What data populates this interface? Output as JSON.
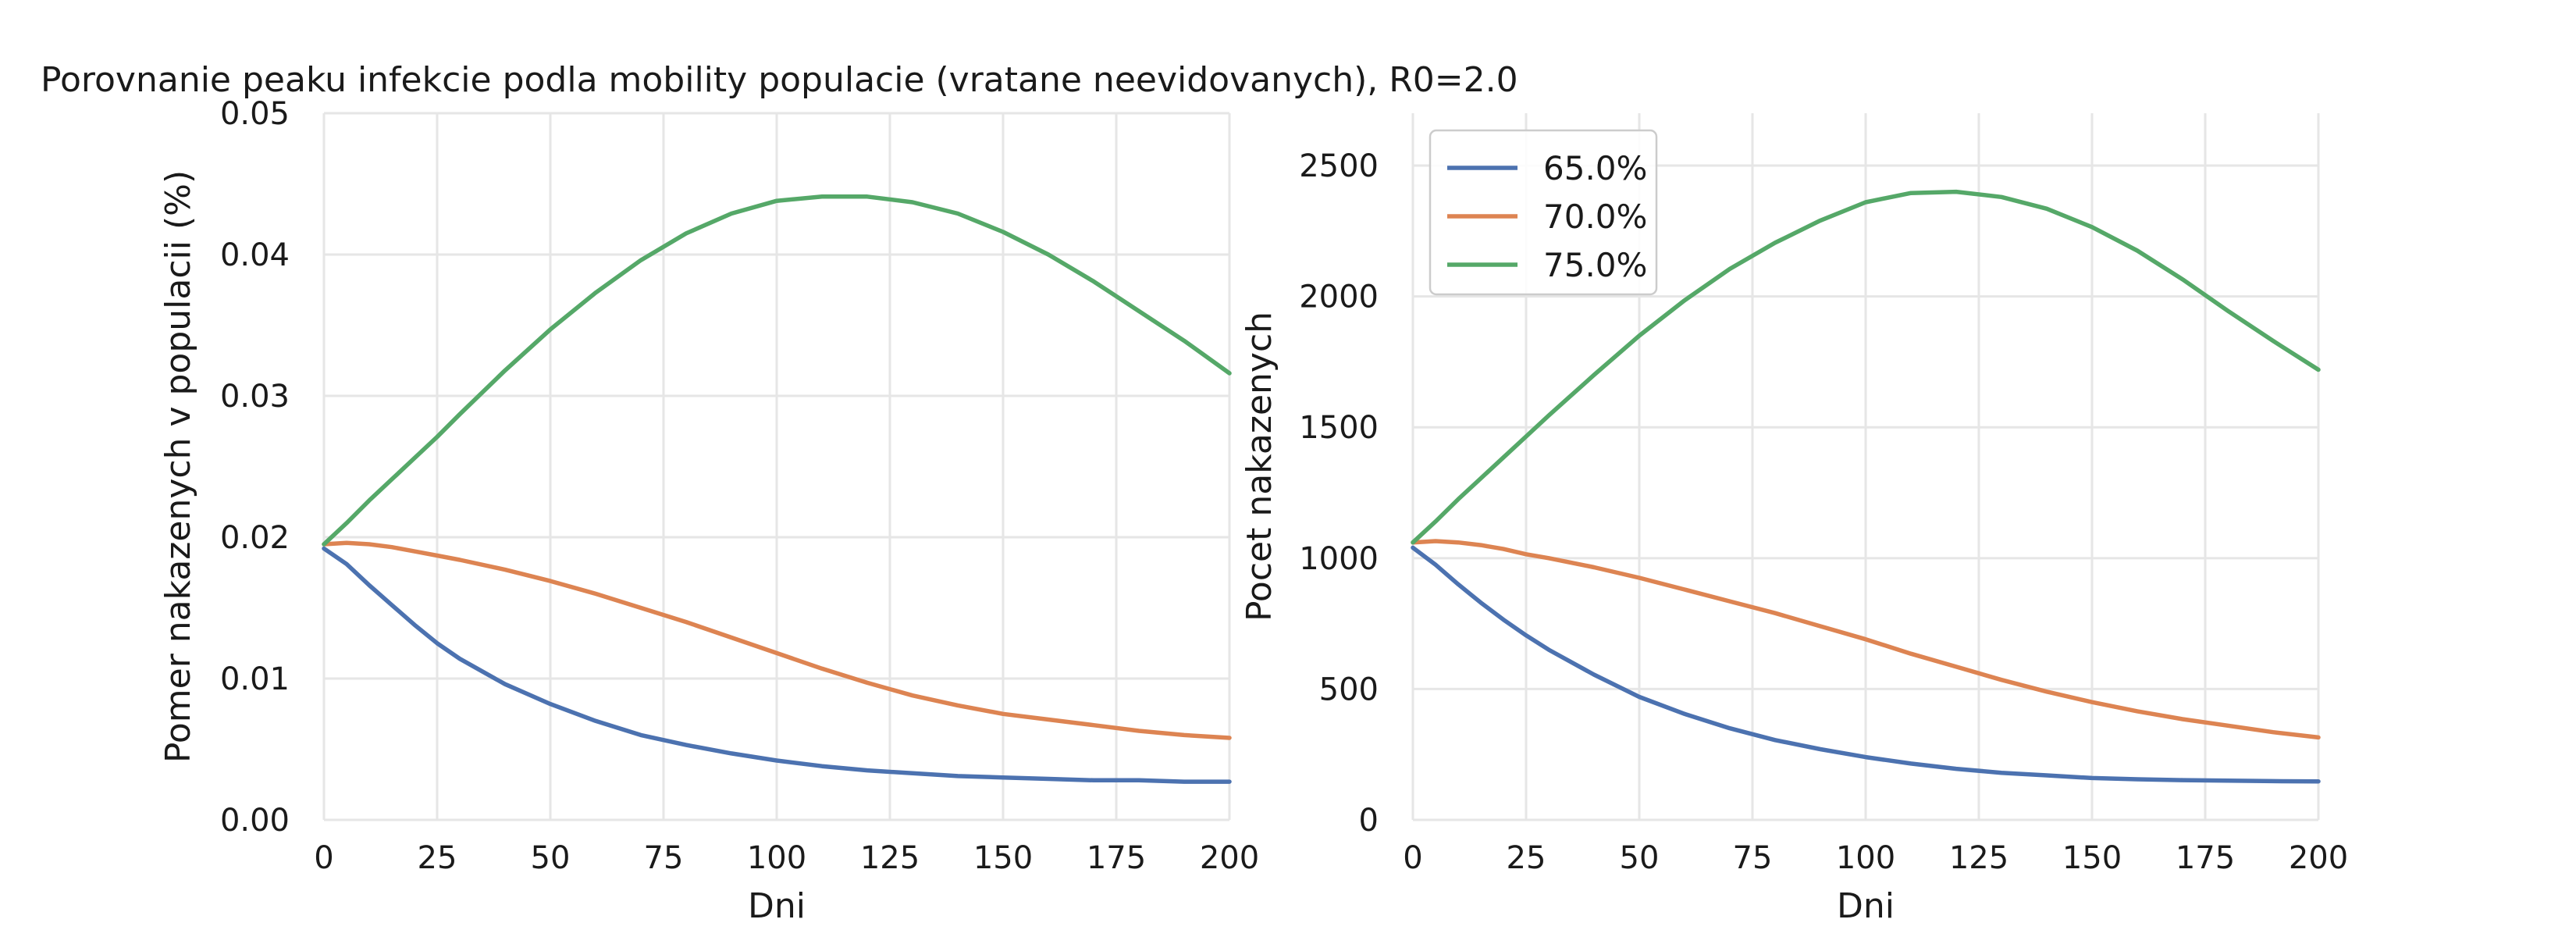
{
  "chart_data": {
    "title": "Porovnanie peaku infekcie podla mobility populacie (vratane neevidovanych), R0=2.0",
    "colors": {
      "65.0%": "#4c72b0",
      "70.0%": "#dd8452",
      "75.0%": "#55a868"
    },
    "panels": [
      {
        "type": "line",
        "xlabel": "Dni",
        "ylabel": "Pomer nakazenych v populacii (%)",
        "xlim": [
          0,
          200
        ],
        "ylim": [
          0,
          0.05
        ],
        "xticks": [
          0,
          25,
          50,
          75,
          100,
          125,
          150,
          175,
          200
        ],
        "yticks": [
          0.0,
          0.01,
          0.02,
          0.03,
          0.04,
          0.05
        ],
        "ytick_labels": [
          "0.00",
          "0.01",
          "0.02",
          "0.03",
          "0.04",
          "0.05"
        ],
        "grid": true,
        "legend": false,
        "x": [
          0,
          5,
          10,
          15,
          20,
          25,
          30,
          40,
          50,
          60,
          70,
          80,
          90,
          100,
          110,
          120,
          130,
          140,
          150,
          160,
          170,
          180,
          190,
          200
        ],
        "series": [
          {
            "name": "65.0%",
            "values": [
              0.0192,
              0.0181,
              0.0166,
              0.0152,
              0.0138,
              0.0125,
              0.0114,
              0.0096,
              0.0082,
              0.007,
              0.006,
              0.0053,
              0.0047,
              0.0042,
              0.0038,
              0.0035,
              0.0033,
              0.0031,
              0.003,
              0.0029,
              0.0028,
              0.0028,
              0.0027,
              0.0027
            ]
          },
          {
            "name": "70.0%",
            "values": [
              0.0195,
              0.0196,
              0.0195,
              0.0193,
              0.019,
              0.0187,
              0.0184,
              0.0177,
              0.0169,
              0.016,
              0.015,
              0.014,
              0.0129,
              0.0118,
              0.0107,
              0.0097,
              0.0088,
              0.0081,
              0.0075,
              0.0071,
              0.0067,
              0.0063,
              0.006,
              0.0058
            ]
          },
          {
            "name": "75.0%",
            "values": [
              0.0195,
              0.021,
              0.0226,
              0.0241,
              0.0256,
              0.0271,
              0.0287,
              0.0318,
              0.0347,
              0.0373,
              0.0396,
              0.0415,
              0.0429,
              0.0438,
              0.0441,
              0.0441,
              0.0437,
              0.0429,
              0.0416,
              0.04,
              0.0381,
              0.036,
              0.0339,
              0.0316
            ]
          }
        ]
      },
      {
        "type": "line",
        "xlabel": "Dni",
        "ylabel": "Pocet nakazenych",
        "xlim": [
          0,
          200
        ],
        "ylim": [
          0,
          2700
        ],
        "xticks": [
          0,
          25,
          50,
          75,
          100,
          125,
          150,
          175,
          200
        ],
        "yticks": [
          0,
          500,
          1000,
          1500,
          2000,
          2500
        ],
        "ytick_labels": [
          "0",
          "500",
          "1000",
          "1500",
          "2000",
          "2500"
        ],
        "grid": true,
        "legend": true,
        "legend_position": "top-left",
        "x": [
          0,
          5,
          10,
          15,
          20,
          25,
          30,
          40,
          50,
          60,
          70,
          80,
          90,
          100,
          110,
          120,
          130,
          140,
          150,
          160,
          170,
          180,
          190,
          200
        ],
        "series": [
          {
            "name": "65.0%",
            "values": [
              1040,
              975,
              900,
              830,
              765,
              705,
              650,
              555,
              470,
              405,
              350,
              305,
              270,
              240,
              215,
              195,
              180,
              170,
              160,
              155,
              152,
              150,
              148,
              147
            ]
          },
          {
            "name": "70.0%",
            "values": [
              1060,
              1065,
              1060,
              1050,
              1035,
              1015,
              1000,
              965,
              925,
              880,
              835,
              790,
              740,
              690,
              635,
              585,
              535,
              490,
              450,
              415,
              385,
              360,
              335,
              315
            ]
          },
          {
            "name": "75.0%",
            "values": [
              1060,
              1140,
              1225,
              1305,
              1385,
              1465,
              1545,
              1700,
              1850,
              1985,
              2105,
              2205,
              2290,
              2360,
              2395,
              2400,
              2380,
              2335,
              2265,
              2175,
              2065,
              1945,
              1830,
              1720
            ]
          }
        ]
      }
    ]
  }
}
